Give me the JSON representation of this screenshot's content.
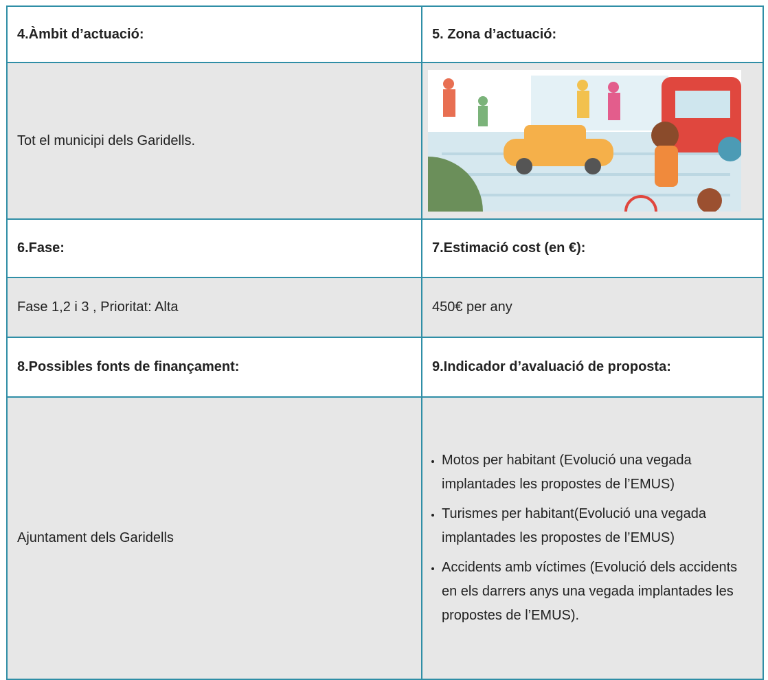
{
  "table": {
    "rows": [
      [
        "4.Àmbit d’actuació:",
        "5. Zona d’actuació:"
      ],
      [
        "Tot el municipi dels Garidells.",
        null
      ],
      [
        "6.Fase:",
        "7.Estimació cost (en €):"
      ],
      [
        "Fase 1,2 i 3 , Prioritat: Alta",
        "450€ per any"
      ],
      [
        "8.Possibles fonts de finançament:",
        "9.Indicador d’avaluació de proposta:"
      ],
      [
        "Ajuntament dels Garidells",
        [
          "Motos per habitant (Evolució una vegada implantades les propostes de l’EMUS)",
          "Turismes per habitant(Evolució una vegada implantades les propostes de l’EMUS)",
          "Accidents amb víctimes (Evolució dels accidents en els darrers anys una vegada implantades les propostes de l’EMUS)."
        ]
      ]
    ]
  }
}
